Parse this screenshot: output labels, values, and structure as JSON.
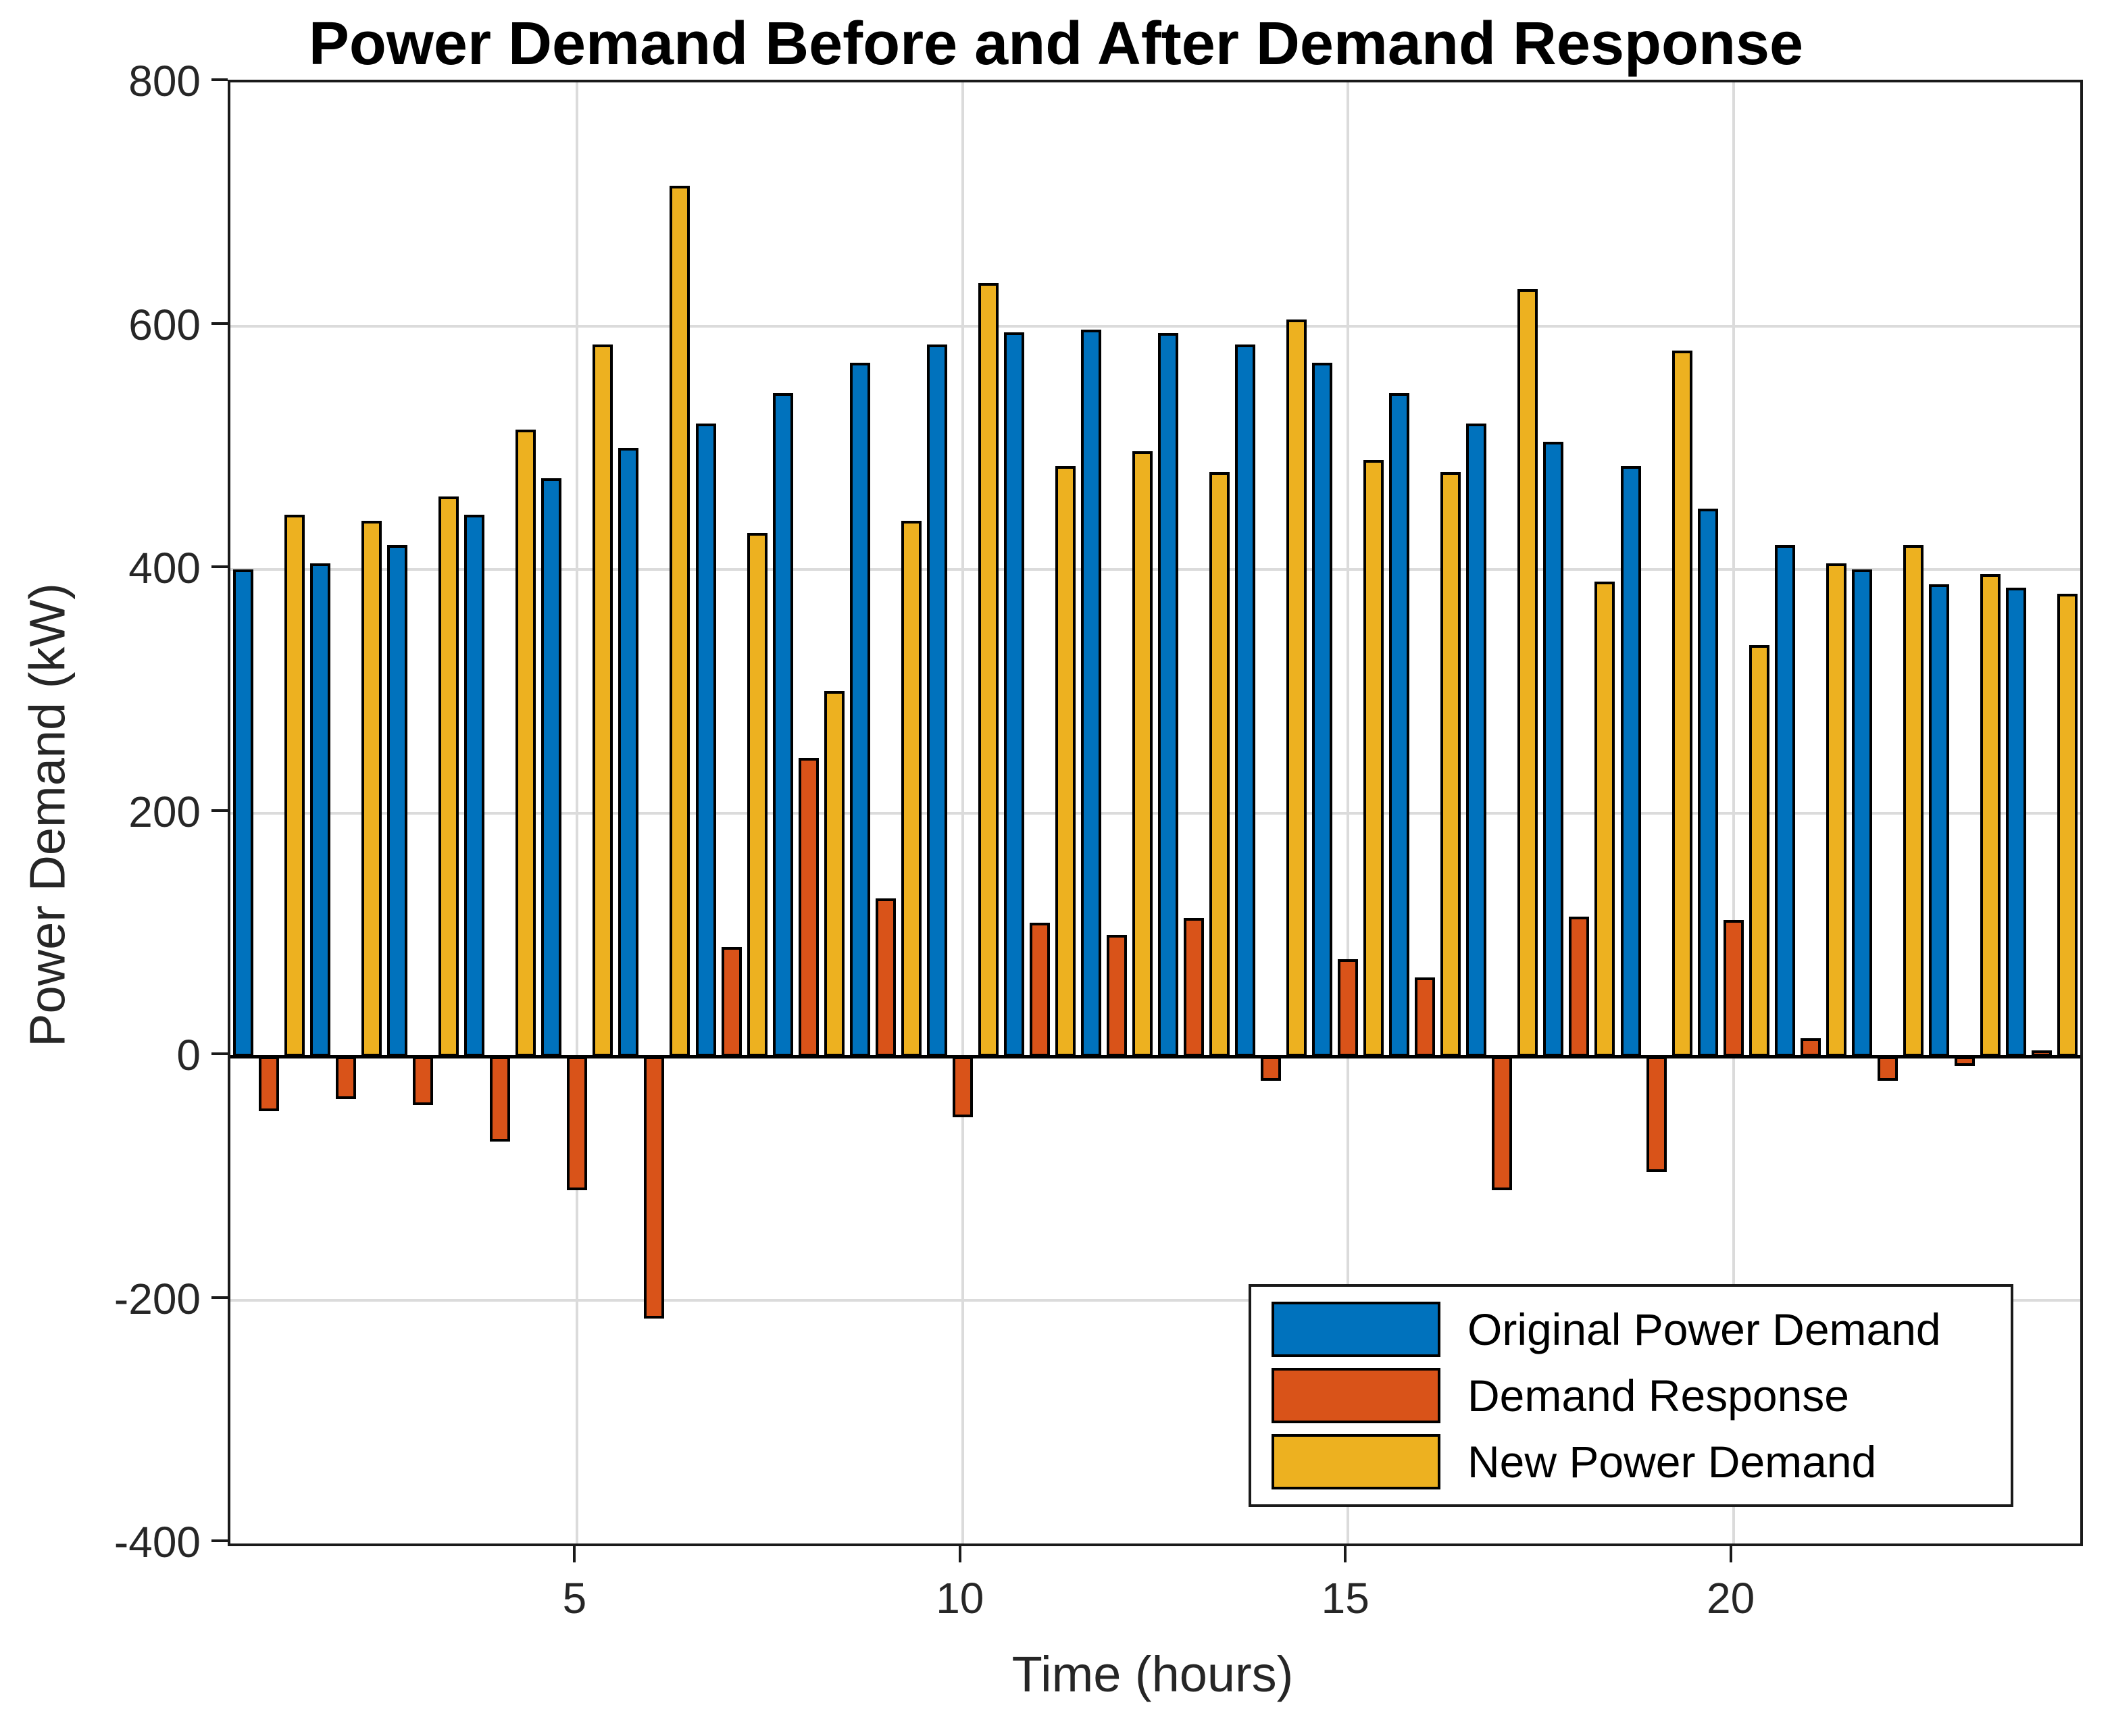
{
  "title": "Power Demand Before and After Demand Response",
  "axes": {
    "xlabel": "Time (hours)",
    "ylabel": "Power Demand (kW)",
    "x_tick_values": [
      5,
      10,
      15,
      20
    ],
    "x_tick_labels": [
      "5",
      "10",
      "15",
      "20"
    ],
    "y_tick_values": [
      800,
      600,
      400,
      200,
      0,
      -200,
      -400
    ],
    "y_tick_labels": [
      "800",
      "600",
      "400",
      "200",
      "0",
      "-200",
      "-400"
    ],
    "xlim": [
      0.5,
      24.5
    ],
    "ylim": [
      -400,
      800
    ],
    "grid": true
  },
  "colors": {
    "original": "#0072BD",
    "demand_response": "#D95319",
    "new": "#EDB120",
    "bar_edge": "#000000",
    "axis": "#1a1a1a",
    "gridline": "#DBDBDB",
    "background": "#FFFFFF"
  },
  "legend": {
    "position": "south-east",
    "entries": [
      {
        "label": "Original Power Demand",
        "color": "#0072BD"
      },
      {
        "label": "Demand Response",
        "color": "#D95319"
      },
      {
        "label": "New Power Demand",
        "color": "#EDB120"
      }
    ]
  },
  "chart_data": {
    "type": "bar",
    "layout": "grouped",
    "title": "Power Demand Before and After Demand Response",
    "xlabel": "Time (hours)",
    "ylabel": "Power Demand (kW)",
    "x": [
      1,
      2,
      3,
      4,
      5,
      6,
      7,
      8,
      9,
      10,
      11,
      12,
      13,
      14,
      15,
      16,
      17,
      18,
      19,
      20,
      21,
      22,
      23,
      24
    ],
    "xlim": [
      0.5,
      24.5
    ],
    "ylim": [
      -400,
      800
    ],
    "grid": true,
    "legend_position": "south-east",
    "series": [
      {
        "name": "Original Power Demand",
        "color": "#0072BD",
        "values": [
          400,
          405,
          420,
          445,
          475,
          500,
          520,
          545,
          570,
          585,
          595,
          597,
          594,
          585,
          570,
          545,
          520,
          505,
          485,
          450,
          420,
          400,
          388,
          385
        ]
      },
      {
        "name": "Demand Response",
        "color": "#D95319",
        "values": [
          -45,
          -35,
          -40,
          -70,
          -110,
          -215,
          90,
          245,
          130,
          -50,
          110,
          100,
          114,
          -20,
          80,
          65,
          -110,
          115,
          -95,
          112,
          15,
          -20,
          -8,
          5
        ]
      },
      {
        "name": "New Power Demand",
        "color": "#EDB120",
        "values": [
          445,
          440,
          460,
          515,
          585,
          715,
          430,
          300,
          440,
          635,
          485,
          497,
          480,
          605,
          490,
          480,
          630,
          390,
          580,
          338,
          405,
          420,
          396,
          380
        ]
      }
    ]
  }
}
